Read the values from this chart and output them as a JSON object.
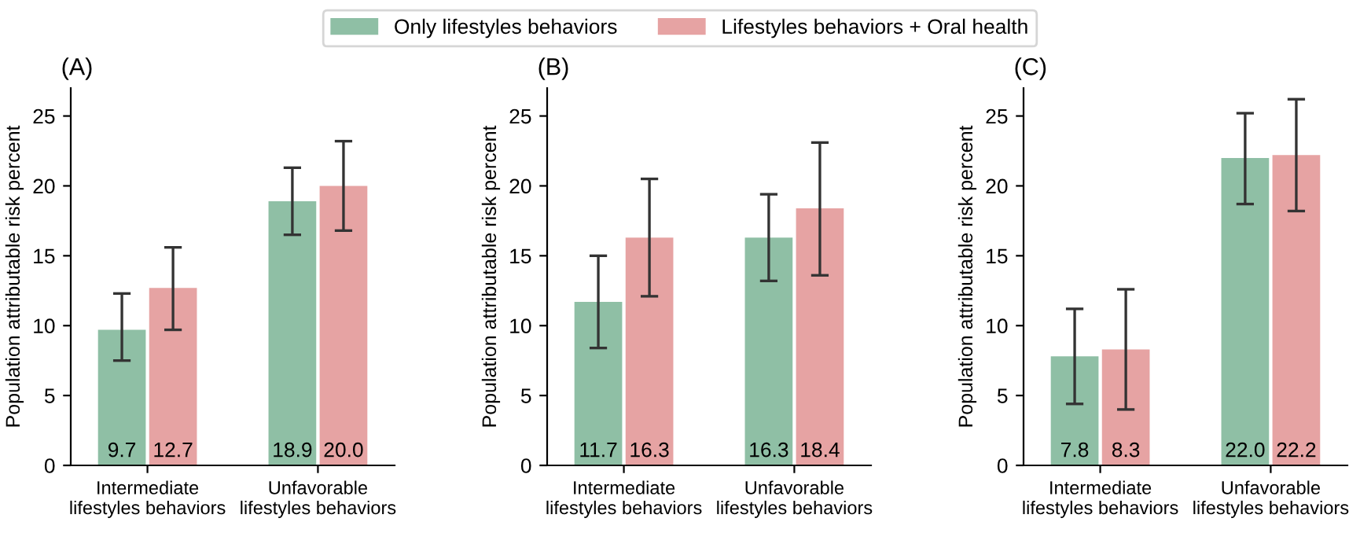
{
  "chart_data": [
    {
      "type": "bar",
      "title": "(A)",
      "ylabel": "Population attributable risk percent",
      "categories": [
        "Intermediate\nlifestyles behaviors",
        "Unfavorable\nlifestyles behaviors"
      ],
      "ylim": [
        0,
        27
      ],
      "yticks": [
        0,
        5,
        10,
        15,
        20,
        25
      ],
      "grid": false,
      "legend": "top",
      "series": [
        {
          "name": "Only lifestyles behaviors",
          "color": "#8fbfa5",
          "values": [
            9.7,
            18.9
          ],
          "value_labels": [
            "9.7",
            "18.9"
          ],
          "errors": [
            [
              7.5,
              12.3
            ],
            [
              16.5,
              21.3
            ]
          ]
        },
        {
          "name": "Lifestyles behaviors + Oral health",
          "color": "#e6a3a3",
          "values": [
            12.7,
            20.0
          ],
          "value_labels": [
            "12.7",
            "20.0"
          ],
          "errors": [
            [
              9.7,
              15.6
            ],
            [
              16.8,
              23.2
            ]
          ]
        }
      ]
    },
    {
      "type": "bar",
      "title": "(B)",
      "ylabel": "Population attributable risk percent",
      "categories": [
        "Intermediate\nlifestyles behaviors",
        "Unfavorable\nlifestyles behaviors"
      ],
      "ylim": [
        0,
        27
      ],
      "yticks": [
        0,
        5,
        10,
        15,
        20,
        25
      ],
      "grid": false,
      "series": [
        {
          "color": "#8fbfa5",
          "values": [
            11.7,
            16.3
          ],
          "value_labels": [
            "11.7",
            "16.3"
          ],
          "errors": [
            [
              8.4,
              15.0
            ],
            [
              13.2,
              19.4
            ]
          ]
        },
        {
          "color": "#e6a3a3",
          "values": [
            16.3,
            18.4
          ],
          "value_labels": [
            "16.3",
            "18.4"
          ],
          "errors": [
            [
              12.1,
              20.5
            ],
            [
              13.6,
              23.1
            ]
          ]
        }
      ]
    },
    {
      "type": "bar",
      "title": "(C)",
      "ylabel": "Population attributable risk percent",
      "categories": [
        "Intermediate\nlifestyles behaviors",
        "Unfavorable\nlifestyles behaviors"
      ],
      "ylim": [
        0,
        27
      ],
      "yticks": [
        0,
        5,
        10,
        15,
        20,
        25
      ],
      "grid": false,
      "series": [
        {
          "color": "#8fbfa5",
          "values": [
            7.8,
            22.0
          ],
          "value_labels": [
            "7.8",
            "22.0"
          ],
          "errors": [
            [
              4.4,
              11.2
            ],
            [
              18.7,
              25.2
            ]
          ]
        },
        {
          "color": "#e6a3a3",
          "values": [
            8.3,
            22.2
          ],
          "value_labels": [
            "8.3",
            "22.2"
          ],
          "errors": [
            [
              4.0,
              12.6
            ],
            [
              18.2,
              26.2
            ]
          ]
        }
      ]
    }
  ]
}
